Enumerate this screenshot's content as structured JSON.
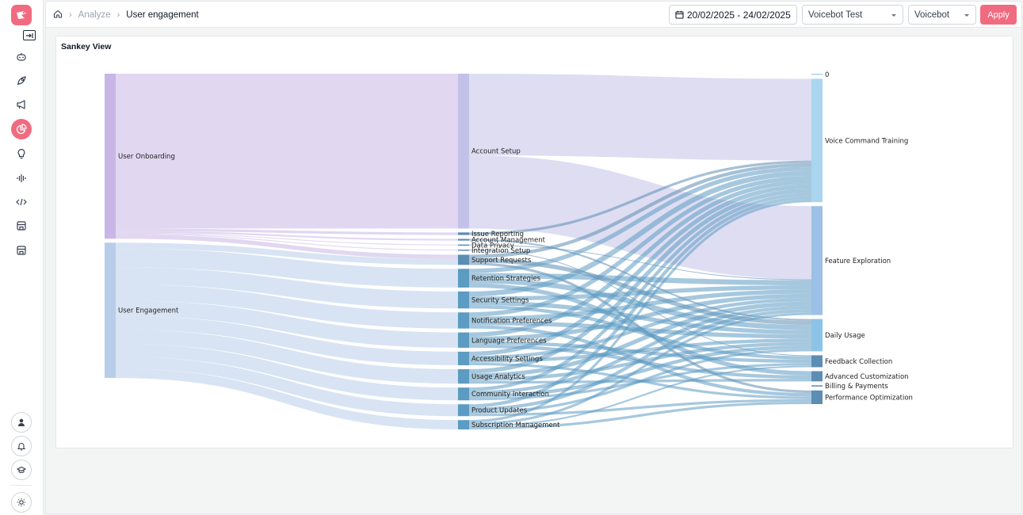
{
  "sidebar": {
    "logo_icon": "voicebot-logo-icon",
    "collapse_icon": "sidebar-collapse-icon",
    "nav_icons": [
      "bot-icon",
      "rocket-icon",
      "megaphone-icon",
      "analytics-pie-icon",
      "lightbulb-icon",
      "waveform-icon",
      "code-icon",
      "store-icon",
      "store-alt-icon"
    ],
    "active_icon": "analytics-pie-icon",
    "bottom_icons": [
      "user-icon",
      "bell-icon",
      "graduation-icon",
      "sun-icon"
    ],
    "accent": "#f16b80"
  },
  "header": {
    "home_icon": "home-icon",
    "breadcrumb": [
      "Analyze",
      "User engagement"
    ],
    "date_range": "20/02/2025 - 24/02/2025",
    "project_select": "Voicebot Test",
    "bot_select": "Voicebot",
    "apply_label": "Apply"
  },
  "card": {
    "title": "Sankey View"
  },
  "chart_data": {
    "type": "sankey",
    "nodes": [
      {
        "name": "User Onboarding",
        "column": 0,
        "color": "#c9b6e6"
      },
      {
        "name": "User Engagement",
        "column": 0,
        "color": "#b8cde9"
      },
      {
        "name": "Account Setup",
        "column": 1,
        "color": "#c3c1e8"
      },
      {
        "name": "Issue Reporting",
        "column": 1,
        "color": "#5c8db3"
      },
      {
        "name": "Account Management",
        "column": 1,
        "color": "#5c8db3"
      },
      {
        "name": "Data Privacy",
        "column": 1,
        "color": "#5c8db3"
      },
      {
        "name": "Integration Setup",
        "column": 1,
        "color": "#5c8db3"
      },
      {
        "name": "Support Requests",
        "column": 1,
        "color": "#5c8db3"
      },
      {
        "name": "Retention Strategies",
        "column": 1,
        "color": "#5c9bc2"
      },
      {
        "name": "Security Settings",
        "column": 1,
        "color": "#5c9bc2"
      },
      {
        "name": "Notification Preferences",
        "column": 1,
        "color": "#5c9bc2"
      },
      {
        "name": "Language Preferences",
        "column": 1,
        "color": "#5c9bc2"
      },
      {
        "name": "Accessibility Settings",
        "column": 1,
        "color": "#5c9bc2"
      },
      {
        "name": "Usage Analytics",
        "column": 1,
        "color": "#5c9bc2"
      },
      {
        "name": "Community Interaction",
        "column": 1,
        "color": "#5c9bc2"
      },
      {
        "name": "Product Updates",
        "column": 1,
        "color": "#5c9bc2"
      },
      {
        "name": "Subscription Management",
        "column": 1,
        "color": "#5c9bc2"
      },
      {
        "name": "0",
        "column": 2,
        "color": "#a9d6ee"
      },
      {
        "name": "Voice Command Training",
        "column": 2,
        "color": "#a9d6ee"
      },
      {
        "name": "Feature Exploration",
        "column": 2,
        "color": "#9cc0e6"
      },
      {
        "name": "Daily Usage",
        "column": 2,
        "color": "#8cc3e6"
      },
      {
        "name": "Feedback Collection",
        "column": 2,
        "color": "#5c8db3"
      },
      {
        "name": "Advanced Customization",
        "column": 2,
        "color": "#5c8db3"
      },
      {
        "name": "Billing & Payments",
        "column": 2,
        "color": "#5c8db3"
      },
      {
        "name": "Performance Optimization",
        "column": 2,
        "color": "#5c8db3"
      }
    ],
    "links": [
      {
        "source": "User Onboarding",
        "target": "Account Setup",
        "value": 182
      },
      {
        "source": "User Onboarding",
        "target": "Issue Reporting",
        "value": 3
      },
      {
        "source": "User Onboarding",
        "target": "Account Management",
        "value": 2
      },
      {
        "source": "User Onboarding",
        "target": "Data Privacy",
        "value": 1
      },
      {
        "source": "User Onboarding",
        "target": "Integration Setup",
        "value": 1
      },
      {
        "source": "User Onboarding",
        "target": "Support Requests",
        "value": 5
      },
      {
        "source": "User Engagement",
        "target": "Support Requests",
        "value": 7
      },
      {
        "source": "User Engagement",
        "target": "Retention Strategies",
        "value": 22
      },
      {
        "source": "User Engagement",
        "target": "Security Settings",
        "value": 20
      },
      {
        "source": "User Engagement",
        "target": "Notification Preferences",
        "value": 19
      },
      {
        "source": "User Engagement",
        "target": "Language Preferences",
        "value": 18
      },
      {
        "source": "User Engagement",
        "target": "Accessibility Settings",
        "value": 16
      },
      {
        "source": "User Engagement",
        "target": "Usage Analytics",
        "value": 17
      },
      {
        "source": "User Engagement",
        "target": "Community Interaction",
        "value": 15
      },
      {
        "source": "User Engagement",
        "target": "Product Updates",
        "value": 14
      },
      {
        "source": "User Engagement",
        "target": "Subscription Management",
        "value": 11
      },
      {
        "source": "Account Setup",
        "target": "Voice Command Training",
        "value": 96
      },
      {
        "source": "Account Setup",
        "target": "Feature Exploration",
        "value": 86
      },
      {
        "source": "Issue Reporting",
        "target": "Voice Command Training",
        "value": 3
      },
      {
        "source": "Account Management",
        "target": "Daily Usage",
        "value": 2
      },
      {
        "source": "Data Privacy",
        "target": "Feature Exploration",
        "value": 1
      },
      {
        "source": "Integration Setup",
        "target": "Feedback Collection",
        "value": 1
      },
      {
        "source": "Support Requests",
        "target": "Voice Command Training",
        "value": 4
      },
      {
        "source": "Support Requests",
        "target": "Daily Usage",
        "value": 5
      },
      {
        "source": "Support Requests",
        "target": "Performance Optimization",
        "value": 3
      },
      {
        "source": "Retention Strategies",
        "target": "Voice Command Training",
        "value": 5
      },
      {
        "source": "Retention Strategies",
        "target": "Feature Exploration",
        "value": 6
      },
      {
        "source": "Retention Strategies",
        "target": "Daily Usage",
        "value": 6
      },
      {
        "source": "Retention Strategies",
        "target": "Advanced Customization",
        "value": 5
      },
      {
        "source": "Security Settings",
        "target": "Voice Command Training",
        "value": 6
      },
      {
        "source": "Security Settings",
        "target": "Feature Exploration",
        "value": 5
      },
      {
        "source": "Security Settings",
        "target": "Daily Usage",
        "value": 5
      },
      {
        "source": "Security Settings",
        "target": "Feedback Collection",
        "value": 4
      },
      {
        "source": "Notification Preferences",
        "target": "Voice Command Training",
        "value": 5
      },
      {
        "source": "Notification Preferences",
        "target": "Feature Exploration",
        "value": 5
      },
      {
        "source": "Notification Preferences",
        "target": "Daily Usage",
        "value": 5
      },
      {
        "source": "Notification Preferences",
        "target": "Performance Optimization",
        "value": 4
      },
      {
        "source": "Language Preferences",
        "target": "Voice Command Training",
        "value": 5
      },
      {
        "source": "Language Preferences",
        "target": "Feature Exploration",
        "value": 5
      },
      {
        "source": "Language Preferences",
        "target": "Advanced Customization",
        "value": 4
      },
      {
        "source": "Language Preferences",
        "target": "Feedback Collection",
        "value": 4
      },
      {
        "source": "Accessibility Settings",
        "target": "Voice Command Training",
        "value": 5
      },
      {
        "source": "Accessibility Settings",
        "target": "Feature Exploration",
        "value": 4
      },
      {
        "source": "Accessibility Settings",
        "target": "Daily Usage",
        "value": 4
      },
      {
        "source": "Accessibility Settings",
        "target": "Performance Optimization",
        "value": 3
      },
      {
        "source": "Usage Analytics",
        "target": "Voice Command Training",
        "value": 5
      },
      {
        "source": "Usage Analytics",
        "target": "Feature Exploration",
        "value": 5
      },
      {
        "source": "Usage Analytics",
        "target": "Daily Usage",
        "value": 4
      },
      {
        "source": "Usage Analytics",
        "target": "Advanced Customization",
        "value": 3
      },
      {
        "source": "Community Interaction",
        "target": "Voice Command Training",
        "value": 4
      },
      {
        "source": "Community Interaction",
        "target": "Feature Exploration",
        "value": 4
      },
      {
        "source": "Community Interaction",
        "target": "Daily Usage",
        "value": 4
      },
      {
        "source": "Community Interaction",
        "target": "Feedback Collection",
        "value": 3
      },
      {
        "source": "Product Updates",
        "target": "Voice Command Training",
        "value": 4
      },
      {
        "source": "Product Updates",
        "target": "Feature Exploration",
        "value": 4
      },
      {
        "source": "Product Updates",
        "target": "Daily Usage",
        "value": 3
      },
      {
        "source": "Product Updates",
        "target": "Performance Optimization",
        "value": 3
      },
      {
        "source": "Subscription Management",
        "target": "Voice Command Training",
        "value": 3
      },
      {
        "source": "Subscription Management",
        "target": "Feature Exploration",
        "value": 3
      },
      {
        "source": "Subscription Management",
        "target": "Feedback Collection",
        "value": 2
      },
      {
        "source": "Subscription Management",
        "target": "Performance Optimization",
        "value": 3
      }
    ]
  }
}
